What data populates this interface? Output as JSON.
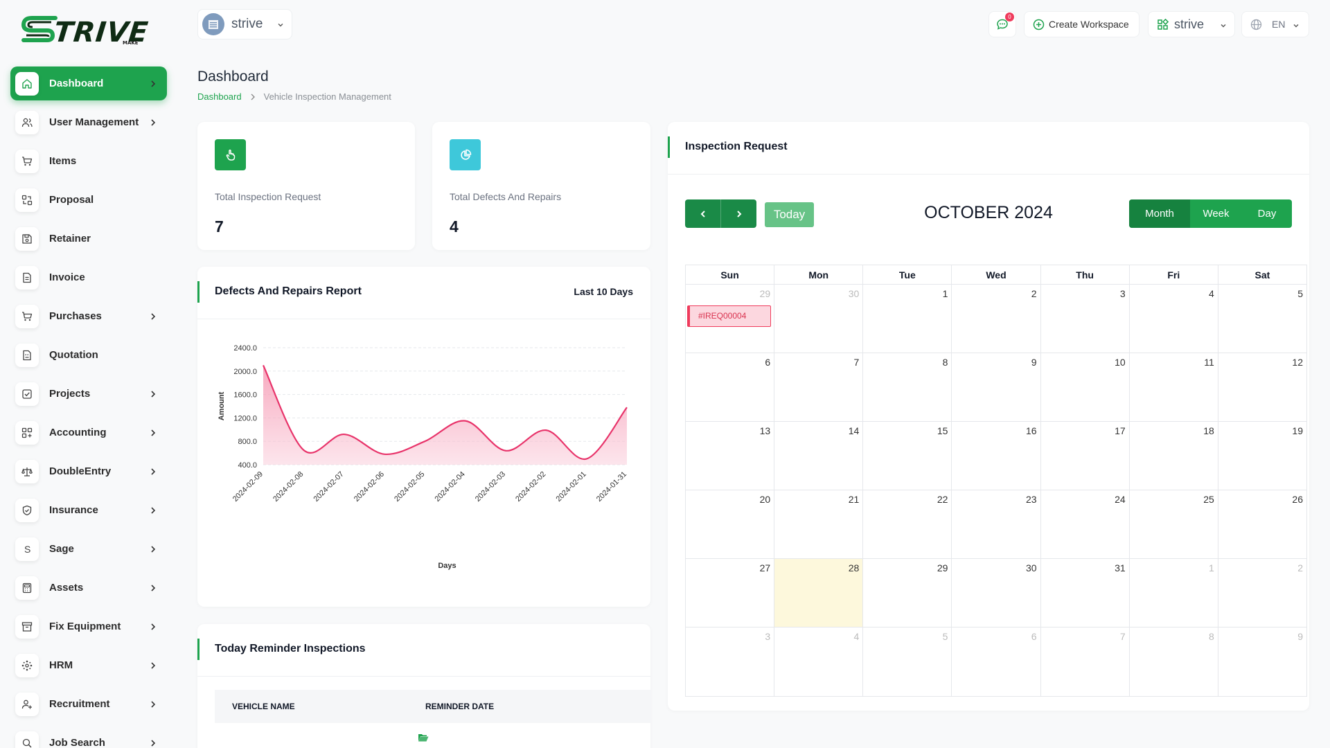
{
  "brand": {
    "logo_text": "TRIVE",
    "logo_sub": "MAKE"
  },
  "sidebar": {
    "items": [
      {
        "label": "Dashboard",
        "icon": "home-icon",
        "has_children": true,
        "active": true
      },
      {
        "label": "User Management",
        "icon": "users-icon",
        "has_children": true
      },
      {
        "label": "Items",
        "icon": "cart-icon",
        "has_children": false
      },
      {
        "label": "Proposal",
        "icon": "arrows-icon",
        "has_children": false
      },
      {
        "label": "Retainer",
        "icon": "save-icon",
        "has_children": false
      },
      {
        "label": "Invoice",
        "icon": "document-icon",
        "has_children": false
      },
      {
        "label": "Purchases",
        "icon": "cart-icon",
        "has_children": true
      },
      {
        "label": "Quotation",
        "icon": "quote-icon",
        "has_children": false
      },
      {
        "label": "Projects",
        "icon": "checkbox-icon",
        "has_children": true
      },
      {
        "label": "Accounting",
        "icon": "grid-icon",
        "has_children": true
      },
      {
        "label": "DoubleEntry",
        "icon": "scale-icon",
        "has_children": true
      },
      {
        "label": "Insurance",
        "icon": "shield-icon",
        "has_children": true
      },
      {
        "label": "Sage",
        "icon": "letter-s-icon",
        "has_children": true
      },
      {
        "label": "Assets",
        "icon": "calculator-icon",
        "has_children": true
      },
      {
        "label": "Fix Equipment",
        "icon": "archive-icon",
        "has_children": true
      },
      {
        "label": "HRM",
        "icon": "network-icon",
        "has_children": true
      },
      {
        "label": "Recruitment",
        "icon": "user-plus-icon",
        "has_children": true
      },
      {
        "label": "Job Search",
        "icon": "search-icon",
        "has_children": true
      }
    ]
  },
  "header": {
    "workspace_name": "strive",
    "chat_badge": "0",
    "create_workspace_label": "Create Workspace",
    "workspace_switch_label": "strive",
    "language_label": "EN"
  },
  "page": {
    "title": "Dashboard",
    "breadcrumb_home": "Dashboard",
    "breadcrumb_current": "Vehicle Inspection Management"
  },
  "stats": [
    {
      "label": "Total Inspection Request",
      "value": "7",
      "icon": "pointer-hand-icon",
      "color": "#1ea34e"
    },
    {
      "label": "Total Defects And Repairs",
      "value": "4",
      "icon": "pie-chart-icon",
      "color": "#3ec8da"
    }
  ],
  "defects_report": {
    "title": "Defects And Repairs Report",
    "range_label": "Last 10 Days"
  },
  "chart_data": {
    "type": "area",
    "title": "",
    "xlabel": "Days",
    "ylabel": "Amount",
    "ylim": [
      400,
      2400
    ],
    "y_ticks": [
      "400.0",
      "800.0",
      "1200.0",
      "1600.0",
      "2000.0",
      "2400.0"
    ],
    "x": [
      "2024-02-09",
      "2024-02-08",
      "2024-02-07",
      "2024-02-06",
      "2024-02-05",
      "2024-02-04",
      "2024-02-03",
      "2024-02-02",
      "2024-02-01",
      "2024-01-31"
    ],
    "series": [
      {
        "values": [
          2100,
          650,
          920,
          580,
          800,
          1150,
          640,
          990,
          500,
          1380
        ]
      }
    ],
    "color": "#e8336a",
    "grid": true
  },
  "reminders": {
    "title": "Today Reminder Inspections",
    "columns": [
      "VEHICLE NAME",
      "REMINDER DATE"
    ]
  },
  "calendar": {
    "title": "Inspection Request",
    "month_label": "OCTOBER 2024",
    "today_label": "Today",
    "views": [
      "Month",
      "Week",
      "Day"
    ],
    "weekdays": [
      "Sun",
      "Mon",
      "Tue",
      "Wed",
      "Thu",
      "Fri",
      "Sat"
    ],
    "weeks": [
      [
        "29",
        "30",
        "1",
        "2",
        "3",
        "4",
        "5"
      ],
      [
        "6",
        "7",
        "8",
        "9",
        "10",
        "11",
        "12"
      ],
      [
        "13",
        "14",
        "15",
        "16",
        "17",
        "18",
        "19"
      ],
      [
        "20",
        "21",
        "22",
        "23",
        "24",
        "25",
        "26"
      ],
      [
        "27",
        "28",
        "29",
        "30",
        "31",
        "1",
        "2"
      ],
      [
        "3",
        "4",
        "5",
        "6",
        "7",
        "8",
        "9"
      ]
    ],
    "event": {
      "label": "#IREQ00004",
      "color": "#ef3b5c"
    }
  }
}
